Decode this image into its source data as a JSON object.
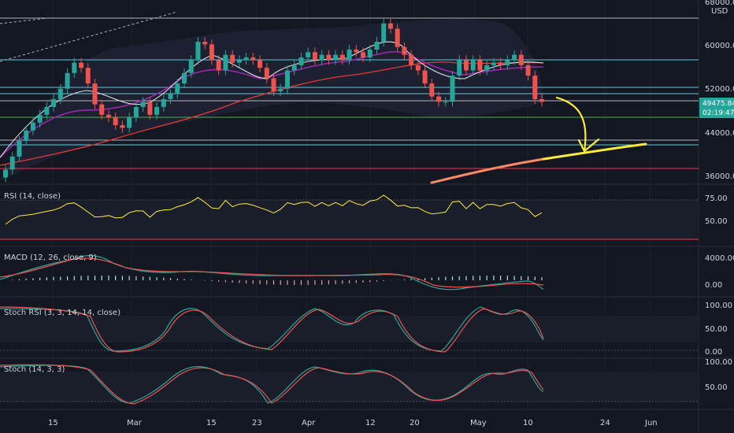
{
  "colors": {
    "background": "#131722",
    "up": "#26a69a",
    "down": "#ef5350",
    "grid": "#2a2e39",
    "yellow": "#ffeb3b",
    "cyan": "#4dd0e1",
    "red_line": "#f23645",
    "green_line": "#4caf50",
    "purple": "#9c27b0",
    "orange": "#ff9800",
    "text": "#d1d4dc"
  },
  "price_axis": {
    "currency": "USD",
    "ticks": [
      "68000.00",
      "60000.00",
      "52000.00",
      "44000.00",
      "36000.00"
    ],
    "last_price": "49475.84",
    "countdown": "02:19:47"
  },
  "time_axis": {
    "ticks": [
      "15",
      "Mar",
      "15",
      "23",
      "Apr",
      "12",
      "20",
      "May",
      "10",
      "24",
      "Jun"
    ]
  },
  "panes": {
    "rsi": {
      "title": "RSI (14, close)",
      "ticks": [
        "75.00",
        "50.00"
      ]
    },
    "macd": {
      "title": "MACD (12, 26, close, 9)",
      "ticks": [
        "4000.00",
        "0.00"
      ]
    },
    "stochrsi": {
      "title": "Stoch RSI (3, 3, 14, 14, close)",
      "ticks": [
        "100.00",
        "50.00",
        "0.00"
      ]
    },
    "stoch": {
      "title": "Stoch (14, 3, 3)",
      "ticks": [
        "100.00",
        "50.00"
      ]
    }
  },
  "chart_data": {
    "type": "candlestick",
    "symbol_quote": "USD",
    "ylim": [
      34000,
      69000
    ],
    "candles_close": [
      36500,
      39000,
      42000,
      44000,
      45500,
      47000,
      48500,
      50000,
      52000,
      55000,
      57000,
      56000,
      53000,
      49000,
      47000,
      46500,
      45000,
      44500,
      46500,
      48500,
      49500,
      47000,
      48500,
      50000,
      51000,
      53000,
      55000,
      57500,
      61000,
      60500,
      57500,
      55500,
      58500,
      57000,
      57500,
      58000,
      57500,
      56000,
      54000,
      51500,
      52000,
      55500,
      56500,
      58000,
      59000,
      57500,
      58500,
      57500,
      58500,
      57500,
      59500,
      59000,
      58000,
      59500,
      61000,
      64500,
      63500,
      60000,
      58500,
      56500,
      55500,
      53000,
      50500,
      49500,
      49500,
      54500,
      57500,
      55500,
      57500,
      55500,
      56500,
      57000,
      56500,
      57500,
      58500,
      56500,
      54500,
      50000,
      49475
    ]
  }
}
